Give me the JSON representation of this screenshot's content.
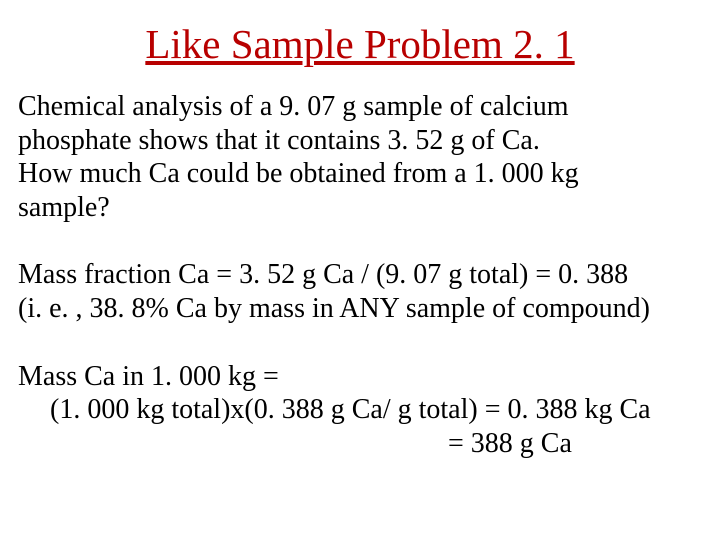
{
  "title": {
    "text": "Like Sample Problem 2. 1",
    "color": "#b80000",
    "fontsize": 41
  },
  "body": {
    "color": "#000000",
    "fontsize": 28,
    "p1l1": "Chemical analysis of a 9. 07 g sample of calcium",
    "p1l2": "phosphate shows that it contains 3. 52 g of Ca.",
    "p1l3": "How much Ca could be obtained from a 1. 000 kg",
    "p1l4": "sample?",
    "p2l1": "Mass fraction Ca = 3. 52 g Ca / (9. 07 g total) = 0. 388",
    "p2l2": "(i. e. , 38. 8% Ca by mass in ANY sample of compound)",
    "p3l1": "Mass Ca in 1. 000 kg =",
    "p3l2": "(1. 000 kg total)x(0. 388 g Ca/ g total) = 0. 388 kg Ca",
    "p3l3": "= 388 g Ca"
  }
}
